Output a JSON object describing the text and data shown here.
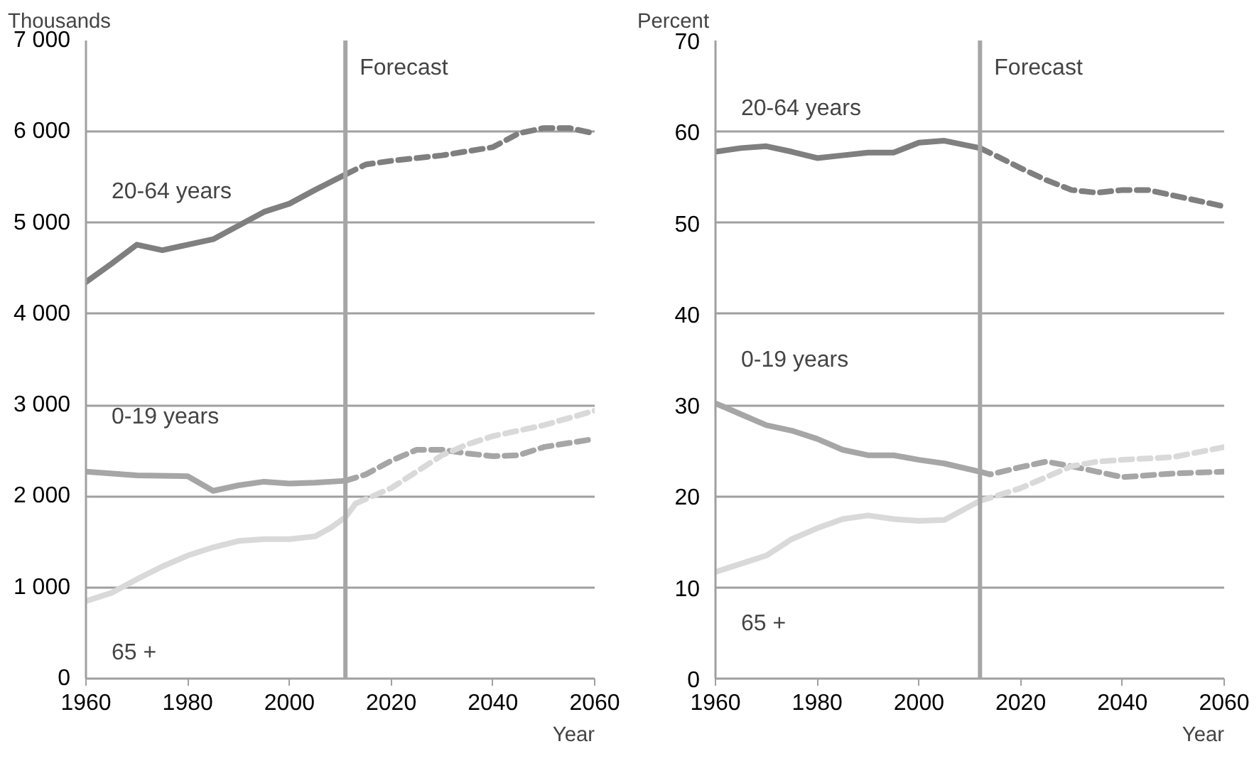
{
  "chart_data": [
    {
      "type": "line",
      "ylabel": "Thousands",
      "xlabel": "Year",
      "xlim": [
        1960,
        2060
      ],
      "xticks": [
        1960,
        1980,
        2000,
        2020,
        2040,
        2060
      ],
      "ylim": [
        0,
        7000
      ],
      "yticks": [
        {
          "value": 0,
          "label": "0"
        },
        {
          "value": 1000,
          "label": "1 000"
        },
        {
          "value": 2000,
          "label": "2 000"
        },
        {
          "value": 3000,
          "label": "3 000"
        },
        {
          "value": 4000,
          "label": "4 000"
        },
        {
          "value": 5000,
          "label": "5 000"
        },
        {
          "value": 6000,
          "label": "6 000"
        },
        {
          "value": 7000,
          "label": "7 000"
        }
      ],
      "grid": "y",
      "legend": false,
      "marker": "none",
      "ref_lines": [
        {
          "axis": "x",
          "value": 2011,
          "label": "Forecast",
          "color": "#a6a6a6"
        }
      ],
      "series": [
        {
          "name": "20-64 years",
          "color": "#7f7f7f",
          "line_style": "solid",
          "x": [
            1960,
            1965,
            1970,
            1975,
            1980,
            1985,
            1990,
            1995,
            2000,
            2005,
            2011
          ],
          "values": [
            4350,
            4550,
            4760,
            4700,
            4760,
            4820,
            4970,
            5120,
            5210,
            5360,
            5530
          ]
        },
        {
          "color": "#7f7f7f",
          "line_style": "dashed",
          "x": [
            2011,
            2015,
            2020,
            2030,
            2040,
            2045,
            2050,
            2055,
            2060
          ],
          "values": [
            5530,
            5640,
            5680,
            5740,
            5830,
            5980,
            6040,
            6040,
            5980
          ]
        },
        {
          "name": "0-19 years",
          "color": "#a6a6a6",
          "line_style": "solid",
          "x": [
            1960,
            1970,
            1980,
            1985,
            1990,
            1995,
            2000,
            2005,
            2011
          ],
          "values": [
            2270,
            2230,
            2220,
            2060,
            2120,
            2160,
            2140,
            2150,
            2170
          ]
        },
        {
          "color": "#a6a6a6",
          "line_style": "dashed",
          "x": [
            2011,
            2015,
            2020,
            2025,
            2030,
            2035,
            2040,
            2045,
            2050,
            2060
          ],
          "values": [
            2170,
            2240,
            2390,
            2510,
            2510,
            2470,
            2440,
            2450,
            2540,
            2630
          ]
        },
        {
          "name": "65 +",
          "color": "#d9d9d9",
          "line_style": "solid",
          "x": [
            1960,
            1965,
            1970,
            1975,
            1980,
            1985,
            1990,
            1995,
            2000,
            2005,
            2008,
            2011,
            2013
          ],
          "values": [
            850,
            940,
            1090,
            1230,
            1350,
            1440,
            1510,
            1530,
            1530,
            1560,
            1650,
            1770,
            1920
          ]
        },
        {
          "color": "#d9d9d9",
          "line_style": "dashed",
          "x": [
            2013,
            2020,
            2025,
            2030,
            2035,
            2040,
            2050,
            2060
          ],
          "values": [
            1920,
            2090,
            2270,
            2450,
            2570,
            2660,
            2780,
            2940
          ]
        }
      ]
    },
    {
      "type": "line",
      "ylabel": "Percent",
      "xlabel": "Year",
      "xlim": [
        1960,
        2060
      ],
      "xticks": [
        1960,
        1980,
        2000,
        2020,
        2040,
        2060
      ],
      "ylim": [
        0,
        70
      ],
      "yticks": [
        0,
        10,
        20,
        30,
        40,
        50,
        60,
        70
      ],
      "grid": "y",
      "legend": false,
      "marker": "none",
      "ref_lines": [
        {
          "axis": "x",
          "value": 2012,
          "label": "Forecast",
          "color": "#a6a6a6"
        }
      ],
      "series": [
        {
          "name": "20-64 years",
          "color": "#7f7f7f",
          "line_style": "solid",
          "x": [
            1960,
            1965,
            1970,
            1975,
            1980,
            1985,
            1990,
            1995,
            2000,
            2005,
            2012
          ],
          "values": [
            57.8,
            58.2,
            58.4,
            57.8,
            57.1,
            57.4,
            57.7,
            57.7,
            58.8,
            59.0,
            58.2
          ]
        },
        {
          "color": "#7f7f7f",
          "line_style": "dashed",
          "x": [
            2012,
            2015,
            2020,
            2025,
            2030,
            2035,
            2040,
            2045,
            2050,
            2060
          ],
          "values": [
            58.2,
            57.4,
            56.0,
            54.7,
            53.6,
            53.3,
            53.6,
            53.6,
            53.0,
            51.8
          ]
        },
        {
          "name": "0-19 years",
          "color": "#a6a6a6",
          "line_style": "solid",
          "x": [
            1960,
            1965,
            1970,
            1975,
            1980,
            1985,
            1990,
            1995,
            2000,
            2005,
            2012
          ],
          "values": [
            30.2,
            29.0,
            27.8,
            27.2,
            26.3,
            25.1,
            24.5,
            24.5,
            24.0,
            23.6,
            22.7
          ]
        },
        {
          "color": "#a6a6a6",
          "line_style": "dashed",
          "x": [
            2012,
            2014,
            2020,
            2025,
            2030,
            2035,
            2040,
            2050,
            2060
          ],
          "values": [
            22.7,
            22.4,
            23.2,
            23.8,
            23.3,
            22.7,
            22.1,
            22.5,
            22.7
          ]
        },
        {
          "name": "65 +",
          "color": "#d9d9d9",
          "line_style": "solid",
          "x": [
            1960,
            1965,
            1970,
            1975,
            1980,
            1985,
            1990,
            1995,
            2000,
            2005,
            2012
          ],
          "values": [
            11.7,
            12.6,
            13.5,
            15.3,
            16.5,
            17.5,
            17.9,
            17.5,
            17.3,
            17.4,
            19.5
          ]
        },
        {
          "color": "#d9d9d9",
          "line_style": "dashed",
          "x": [
            2012,
            2015,
            2020,
            2025,
            2030,
            2035,
            2040,
            2050,
            2060
          ],
          "values": [
            19.5,
            20.0,
            20.9,
            22.1,
            23.3,
            23.8,
            24.0,
            24.3,
            25.4
          ]
        }
      ]
    }
  ]
}
